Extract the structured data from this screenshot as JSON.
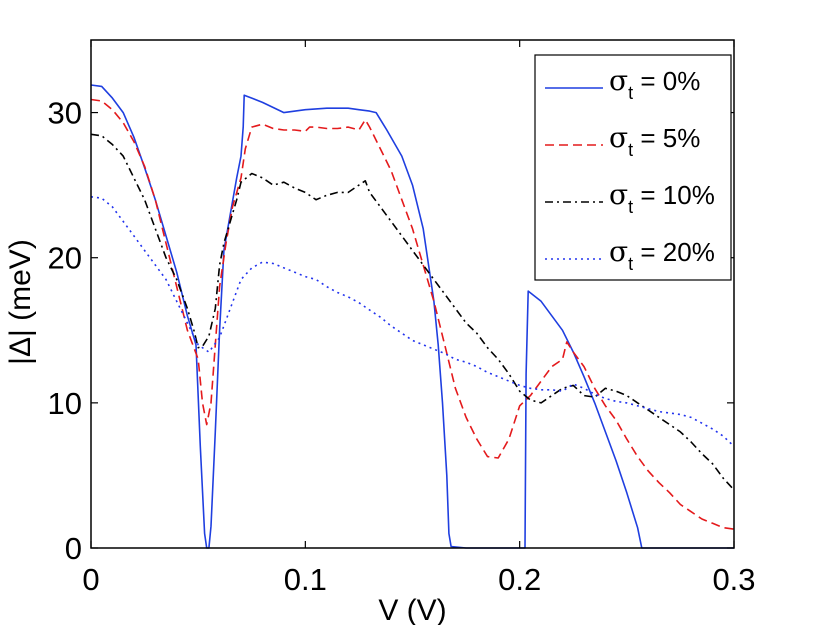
{
  "chart_data": {
    "type": "line",
    "title": "",
    "xlabel": "V (V)",
    "ylabel": "|Δ| (meV)",
    "xlim": [
      0,
      0.3
    ],
    "ylim": [
      0,
      35
    ],
    "xticks": [
      0,
      0.1,
      0.2,
      0.3
    ],
    "xtick_labels": [
      "0",
      "0.1",
      "0.2",
      "0.3"
    ],
    "yticks": [
      0,
      10,
      20,
      30
    ],
    "ytick_labels": [
      "0",
      "10",
      "20",
      "30"
    ],
    "grid": false,
    "legend_position": "top-right",
    "series": [
      {
        "name": "σt = 0%",
        "legend": {
          "symbol": "σ",
          "sub": "t",
          "rest": " = 0%"
        },
        "color": "#1f3fe0",
        "style": "solid",
        "x": [
          0,
          0.005,
          0.01,
          0.015,
          0.02,
          0.025,
          0.03,
          0.035,
          0.04,
          0.045,
          0.049,
          0.051,
          0.053,
          0.054,
          0.055,
          0.056,
          0.058,
          0.06,
          0.062,
          0.065,
          0.068,
          0.07,
          0.071,
          0.0715,
          0.075,
          0.08,
          0.09,
          0.1,
          0.11,
          0.12,
          0.125,
          0.13,
          0.133,
          0.138,
          0.145,
          0.15,
          0.155,
          0.16,
          0.162,
          0.164,
          0.166,
          0.167,
          0.168,
          0.175,
          0.185,
          0.195,
          0.2025,
          0.203,
          0.204,
          0.21,
          0.215,
          0.22,
          0.225,
          0.23,
          0.235,
          0.24,
          0.245,
          0.25,
          0.255,
          0.257,
          0.26,
          0.28,
          0.3
        ],
        "y": [
          31.9,
          31.8,
          31.0,
          30.0,
          28.3,
          26.2,
          24.0,
          21.5,
          19.0,
          16.0,
          14.0,
          7.0,
          1.0,
          0.0,
          0.0,
          1.5,
          8.0,
          15.0,
          20.5,
          23.0,
          25.5,
          27.0,
          29.0,
          31.2,
          31.0,
          30.7,
          30.0,
          30.2,
          30.3,
          30.3,
          30.2,
          30.1,
          30.0,
          28.8,
          27.0,
          25.0,
          22.0,
          17.0,
          14.0,
          10.0,
          5.0,
          1.0,
          0.1,
          0.0,
          0.0,
          0.0,
          0.0,
          12.0,
          17.7,
          17.0,
          16.0,
          15.0,
          13.5,
          11.8,
          10.0,
          8.0,
          6.0,
          3.8,
          1.4,
          0.0,
          0.0,
          0.0,
          0.0
        ]
      },
      {
        "name": "σt = 5%",
        "legend": {
          "symbol": "σ",
          "sub": "t",
          "rest": " = 5%"
        },
        "color": "#e41a1c",
        "style": "dashed",
        "x": [
          0,
          0.005,
          0.01,
          0.015,
          0.02,
          0.025,
          0.03,
          0.035,
          0.04,
          0.045,
          0.05,
          0.052,
          0.054,
          0.056,
          0.058,
          0.06,
          0.063,
          0.066,
          0.07,
          0.072,
          0.075,
          0.08,
          0.085,
          0.09,
          0.095,
          0.1,
          0.102,
          0.105,
          0.11,
          0.115,
          0.12,
          0.125,
          0.128,
          0.13,
          0.135,
          0.14,
          0.145,
          0.15,
          0.155,
          0.16,
          0.165,
          0.17,
          0.175,
          0.18,
          0.185,
          0.19,
          0.195,
          0.2,
          0.205,
          0.21,
          0.215,
          0.22,
          0.222,
          0.225,
          0.23,
          0.235,
          0.24,
          0.245,
          0.25,
          0.255,
          0.26,
          0.265,
          0.27,
          0.275,
          0.28,
          0.285,
          0.29,
          0.295,
          0.3
        ],
        "y": [
          30.9,
          30.8,
          30.2,
          29.3,
          28.0,
          26.3,
          24.0,
          21.0,
          18.0,
          15.0,
          13.0,
          10.0,
          8.5,
          10.0,
          14.0,
          18.0,
          21.0,
          23.5,
          25.5,
          27.5,
          29.0,
          29.2,
          28.9,
          28.8,
          28.8,
          28.7,
          29.0,
          29.0,
          28.9,
          28.9,
          29.0,
          28.8,
          29.5,
          29.0,
          27.5,
          26.0,
          24.0,
          22.0,
          19.5,
          17.0,
          14.0,
          11.0,
          9.0,
          7.5,
          6.3,
          6.2,
          7.5,
          9.8,
          10.5,
          11.5,
          12.5,
          13.0,
          14.2,
          13.5,
          12.5,
          11.0,
          9.8,
          8.8,
          7.5,
          6.3,
          5.3,
          4.5,
          3.8,
          3.0,
          2.5,
          2.0,
          1.7,
          1.4,
          1.3
        ]
      },
      {
        "name": "σt = 10%",
        "legend": {
          "symbol": "σ",
          "sub": "t",
          "rest": " = 10%"
        },
        "color": "#000000",
        "style": "dashdot",
        "x": [
          0,
          0.005,
          0.01,
          0.015,
          0.02,
          0.025,
          0.03,
          0.035,
          0.04,
          0.045,
          0.048,
          0.05,
          0.052,
          0.055,
          0.058,
          0.06,
          0.062,
          0.065,
          0.068,
          0.07,
          0.075,
          0.08,
          0.085,
          0.09,
          0.095,
          0.1,
          0.105,
          0.11,
          0.115,
          0.12,
          0.125,
          0.128,
          0.13,
          0.135,
          0.14,
          0.145,
          0.15,
          0.155,
          0.16,
          0.165,
          0.17,
          0.175,
          0.18,
          0.185,
          0.19,
          0.195,
          0.2,
          0.205,
          0.21,
          0.215,
          0.22,
          0.225,
          0.23,
          0.235,
          0.24,
          0.245,
          0.25,
          0.255,
          0.26,
          0.265,
          0.27,
          0.275,
          0.28,
          0.285,
          0.29,
          0.295,
          0.3
        ],
        "y": [
          28.5,
          28.4,
          27.8,
          27.0,
          25.5,
          24.0,
          22.0,
          20.0,
          18.5,
          16.5,
          15.0,
          13.8,
          13.9,
          14.6,
          16.5,
          19.5,
          21.0,
          22.5,
          24.0,
          25.2,
          25.8,
          25.5,
          25.0,
          25.2,
          24.8,
          24.5,
          24.0,
          24.3,
          24.5,
          24.5,
          25.0,
          25.3,
          24.5,
          23.5,
          22.5,
          21.5,
          20.5,
          19.5,
          18.5,
          17.5,
          16.5,
          15.5,
          14.8,
          13.8,
          13.0,
          12.0,
          10.8,
          10.2,
          10.0,
          10.5,
          11.0,
          11.2,
          10.5,
          10.4,
          11.0,
          10.8,
          10.5,
          10.0,
          9.5,
          9.0,
          8.5,
          8.0,
          7.3,
          6.5,
          5.8,
          4.8,
          4.0
        ]
      },
      {
        "name": "σt = 20%",
        "legend": {
          "symbol": "σ",
          "sub": "t",
          "rest": " = 20%"
        },
        "color": "#2233ee",
        "style": "dotted",
        "x": [
          0,
          0.005,
          0.01,
          0.015,
          0.02,
          0.025,
          0.03,
          0.035,
          0.04,
          0.045,
          0.05,
          0.055,
          0.06,
          0.065,
          0.07,
          0.075,
          0.08,
          0.085,
          0.09,
          0.095,
          0.1,
          0.105,
          0.11,
          0.115,
          0.12,
          0.125,
          0.13,
          0.135,
          0.14,
          0.145,
          0.15,
          0.155,
          0.16,
          0.165,
          0.17,
          0.175,
          0.18,
          0.185,
          0.19,
          0.195,
          0.2,
          0.205,
          0.21,
          0.215,
          0.22,
          0.225,
          0.23,
          0.235,
          0.24,
          0.245,
          0.25,
          0.255,
          0.26,
          0.265,
          0.27,
          0.275,
          0.28,
          0.285,
          0.29,
          0.295,
          0.3
        ],
        "y": [
          24.2,
          24.1,
          23.5,
          22.5,
          21.5,
          20.5,
          19.5,
          18.5,
          17.0,
          15.5,
          14.0,
          13.5,
          14.5,
          16.5,
          18.5,
          19.3,
          19.7,
          19.6,
          19.3,
          19.0,
          18.7,
          18.5,
          18.0,
          17.6,
          17.3,
          16.9,
          16.4,
          15.9,
          15.3,
          14.8,
          14.3,
          14.0,
          13.7,
          13.4,
          13.0,
          12.8,
          12.5,
          12.1,
          11.8,
          11.5,
          11.2,
          11.0,
          10.9,
          10.9,
          10.8,
          11.3,
          11.0,
          10.6,
          10.3,
          10.1,
          10.0,
          9.8,
          9.6,
          9.4,
          9.3,
          9.2,
          9.0,
          8.6,
          8.2,
          7.7,
          7.0
        ]
      }
    ]
  }
}
